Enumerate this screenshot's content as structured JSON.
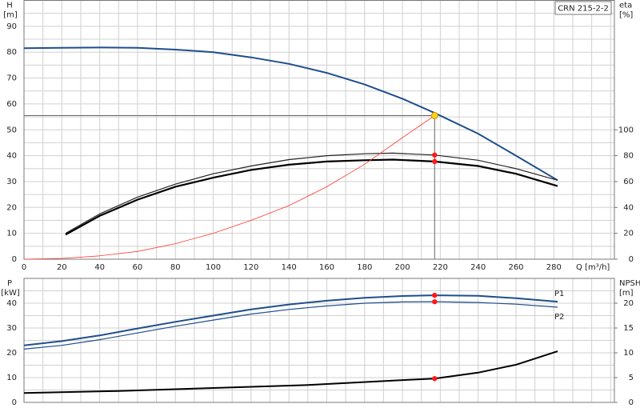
{
  "chart_data": [
    {
      "type": "line",
      "title": "CRN 215-2-2",
      "xlabel": "Q [m³/h]",
      "ylabel": "H",
      "yunit": "[m]",
      "y2label": "eta",
      "y2unit": "[%]",
      "xlim": [
        0,
        312
      ],
      "xticks": [
        0,
        20,
        40,
        60,
        80,
        100,
        120,
        140,
        160,
        180,
        200,
        220,
        240,
        260,
        280
      ],
      "ylim": [
        0,
        100
      ],
      "yticks": [
        0,
        10,
        20,
        30,
        40,
        50,
        60,
        70,
        80,
        90
      ],
      "y2lim": [
        0,
        200
      ],
      "y2ticks": [
        0,
        20,
        40,
        60,
        80,
        100
      ],
      "grid": true,
      "operating_point": {
        "x": 217,
        "y": 55.5,
        "color": "#ffd21a"
      },
      "series": [
        {
          "color": "#1f4e8c",
          "width": 2,
          "x": [
            0,
            20,
            40,
            60,
            80,
            100,
            120,
            140,
            160,
            180,
            200,
            217,
            240,
            260,
            282
          ],
          "values": [
            81.5,
            81.7,
            81.8,
            81.7,
            81,
            80,
            78,
            75.5,
            72,
            67.5,
            62,
            56.5,
            48.5,
            40,
            30.5
          ]
        },
        {
          "color": "#222222",
          "width": 1.2,
          "axis": "y2",
          "x": [
            22,
            40,
            60,
            80,
            100,
            120,
            140,
            160,
            180,
            195,
            217,
            240,
            260,
            282
          ],
          "values": [
            20,
            35,
            48,
            58,
            66,
            72,
            77,
            80,
            81.5,
            82,
            80.5,
            76.5,
            70,
            61
          ]
        },
        {
          "color": "#000000",
          "width": 2.2,
          "axis": "y2",
          "x": [
            22,
            40,
            60,
            80,
            100,
            120,
            140,
            160,
            180,
            195,
            217,
            240,
            260,
            282
          ],
          "values": [
            19,
            33.5,
            46,
            56,
            63,
            69,
            73,
            75.5,
            76.5,
            77,
            75.5,
            72,
            66,
            56.5
          ]
        },
        {
          "color": "#ff3b30",
          "width": 0.8,
          "x": [
            0,
            20,
            40,
            60,
            80,
            100,
            120,
            140,
            160,
            180,
            200,
            217
          ],
          "values": [
            0,
            0.3,
            1.3,
            3,
            6,
            10,
            15,
            20.7,
            28,
            36.7,
            47,
            55.5
          ]
        }
      ]
    },
    {
      "type": "line",
      "ylabel": "P",
      "yunit": "[kW]",
      "y2label": "NPSH",
      "y2unit": "[m]",
      "xlim": [
        0,
        312
      ],
      "xticks": [
        0,
        20,
        40,
        60,
        80,
        100,
        120,
        140,
        160,
        180,
        200,
        220,
        240,
        260,
        280
      ],
      "ylim": [
        0,
        50
      ],
      "yticks": [
        0,
        10,
        20,
        30,
        40
      ],
      "y2lim": [
        0,
        25
      ],
      "y2ticks": [
        0,
        5,
        10,
        15,
        20
      ],
      "grid": true,
      "marker_x": 217,
      "marker_color": "#ff1a1a",
      "series": [
        {
          "name": "P1",
          "color": "#1f4e8c",
          "width": 2,
          "x": [
            0,
            20,
            40,
            60,
            80,
            100,
            120,
            140,
            160,
            180,
            200,
            217,
            240,
            260,
            282
          ],
          "values": [
            23,
            24.7,
            27,
            29.8,
            32.5,
            35,
            37.5,
            39.5,
            41,
            42.2,
            42.9,
            43.2,
            43,
            42,
            40.6
          ]
        },
        {
          "name": "P2",
          "color": "#1f4e8c",
          "width": 1.2,
          "x": [
            0,
            20,
            40,
            60,
            80,
            100,
            120,
            140,
            160,
            180,
            200,
            217,
            240,
            260,
            282
          ],
          "values": [
            21.5,
            23,
            25.3,
            28,
            30.7,
            33.2,
            35.6,
            37.5,
            38.9,
            40,
            40.5,
            40.6,
            40.3,
            39.6,
            38.4
          ]
        },
        {
          "color": "#000000",
          "width": 2,
          "axis": "y2",
          "x": [
            0,
            50,
            100,
            150,
            200,
            217,
            240,
            260,
            282
          ],
          "values": [
            1.9,
            2.3,
            2.9,
            3.5,
            4.5,
            4.8,
            6,
            7.6,
            10.3
          ]
        }
      ]
    }
  ]
}
